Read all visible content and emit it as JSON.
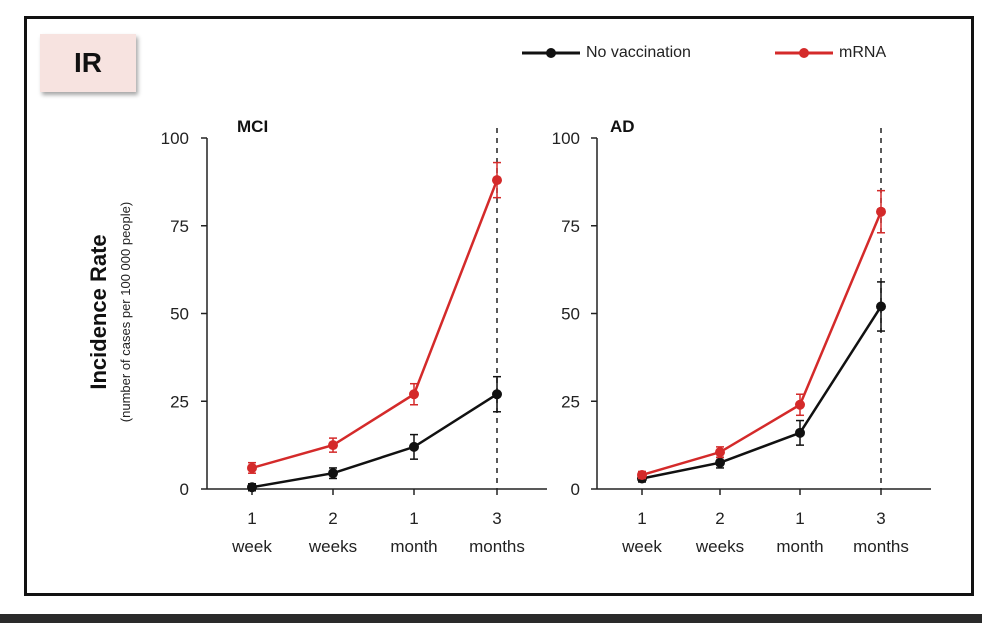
{
  "label": "IR",
  "legend": [
    {
      "name": "No vaccination",
      "color": "#111111"
    },
    {
      "name": "mRNA",
      "color": "#d42a2a"
    }
  ],
  "ylabel": "Incidence Rate",
  "ylabel_sub": "(number of cases per 100 000 people)",
  "chart_data": [
    {
      "type": "line",
      "title": "MCI",
      "categories": [
        [
          "1",
          "week"
        ],
        [
          "2",
          "weeks"
        ],
        [
          "1",
          "month"
        ],
        [
          "3",
          "months"
        ]
      ],
      "yticks": [
        "0",
        "25",
        "50",
        "75",
        "100"
      ],
      "ylim": [
        0,
        100
      ],
      "series": [
        {
          "name": "No vaccination",
          "values": [
            0.5,
            4.5,
            12,
            27
          ],
          "err": [
            1,
            1.5,
            3.5,
            5
          ]
        },
        {
          "name": "mRNA",
          "values": [
            6,
            12.5,
            27,
            88
          ],
          "err": [
            1.5,
            2,
            3,
            5
          ]
        }
      ],
      "dashed_at_category": 3
    },
    {
      "type": "line",
      "title": "AD",
      "categories": [
        [
          "1",
          "week"
        ],
        [
          "2",
          "weeks"
        ],
        [
          "1",
          "month"
        ],
        [
          "3",
          "months"
        ]
      ],
      "yticks": [
        "0",
        "25",
        "50",
        "75",
        "100"
      ],
      "ylim": [
        0,
        100
      ],
      "series": [
        {
          "name": "No vaccination",
          "values": [
            3,
            7.5,
            16,
            52
          ],
          "err": [
            1,
            1.5,
            3.5,
            7
          ]
        },
        {
          "name": "mRNA",
          "values": [
            4,
            10.5,
            24,
            79
          ],
          "err": [
            1,
            1.5,
            3,
            6
          ]
        }
      ],
      "dashed_at_category": 3
    }
  ]
}
